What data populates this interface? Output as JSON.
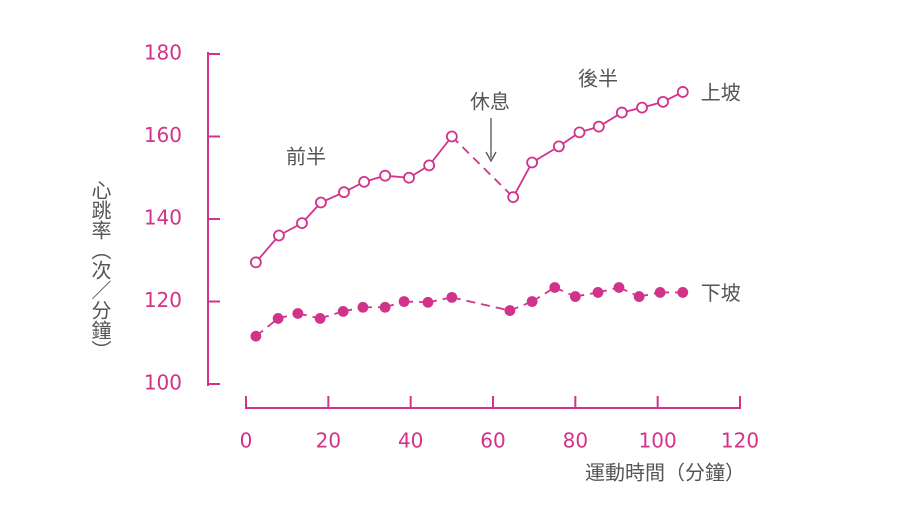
{
  "chart_data": {
    "type": "line",
    "y_label": "心跳率（次／分鐘）",
    "x_label": "運動時間（分鐘）",
    "xlim": [
      0,
      120
    ],
    "xticks": [
      0,
      20,
      40,
      60,
      80,
      100,
      120
    ],
    "ylim": [
      100,
      180
    ],
    "yticks": [
      100,
      120,
      140,
      160,
      180
    ],
    "axis_color": "#d1338a",
    "annotations": [
      "前半",
      "休息",
      "後半"
    ],
    "series": [
      {
        "name": "上坡",
        "color": "#d1338a",
        "marker": "open",
        "line_style": "solid",
        "dashed_segments": [
          [
            9,
            10
          ]
        ],
        "x": [
          2.4,
          8,
          13.6,
          18.2,
          23.8,
          28.7,
          33.8,
          39.6,
          44.5,
          50,
          64.9,
          69.5,
          76,
          81,
          85.7,
          91.3,
          96.2,
          101.3,
          106.1
        ],
        "values": [
          129.5,
          136,
          139,
          144,
          146.5,
          149,
          150.5,
          150,
          153,
          160,
          145.3,
          153.7,
          157.6,
          161,
          162.4,
          165.8,
          167,
          168.4,
          170.8
        ]
      },
      {
        "name": "下坡",
        "color": "#d1338a",
        "marker": "filled",
        "line_style": "dashed",
        "dashed_segments": [],
        "x": [
          2.4,
          7.8,
          12.6,
          18,
          23.6,
          28.4,
          33.8,
          38.4,
          44.2,
          50,
          64.1,
          69.5,
          75,
          80,
          85.5,
          90.6,
          95.5,
          100.6,
          106.1
        ],
        "values": [
          111.6,
          115.9,
          117.1,
          115.9,
          117.6,
          118.6,
          118.6,
          120,
          119.8,
          121,
          117.8,
          120,
          123.4,
          121.2,
          122.2,
          123.4,
          121.2,
          122.2,
          122.2
        ]
      }
    ]
  }
}
